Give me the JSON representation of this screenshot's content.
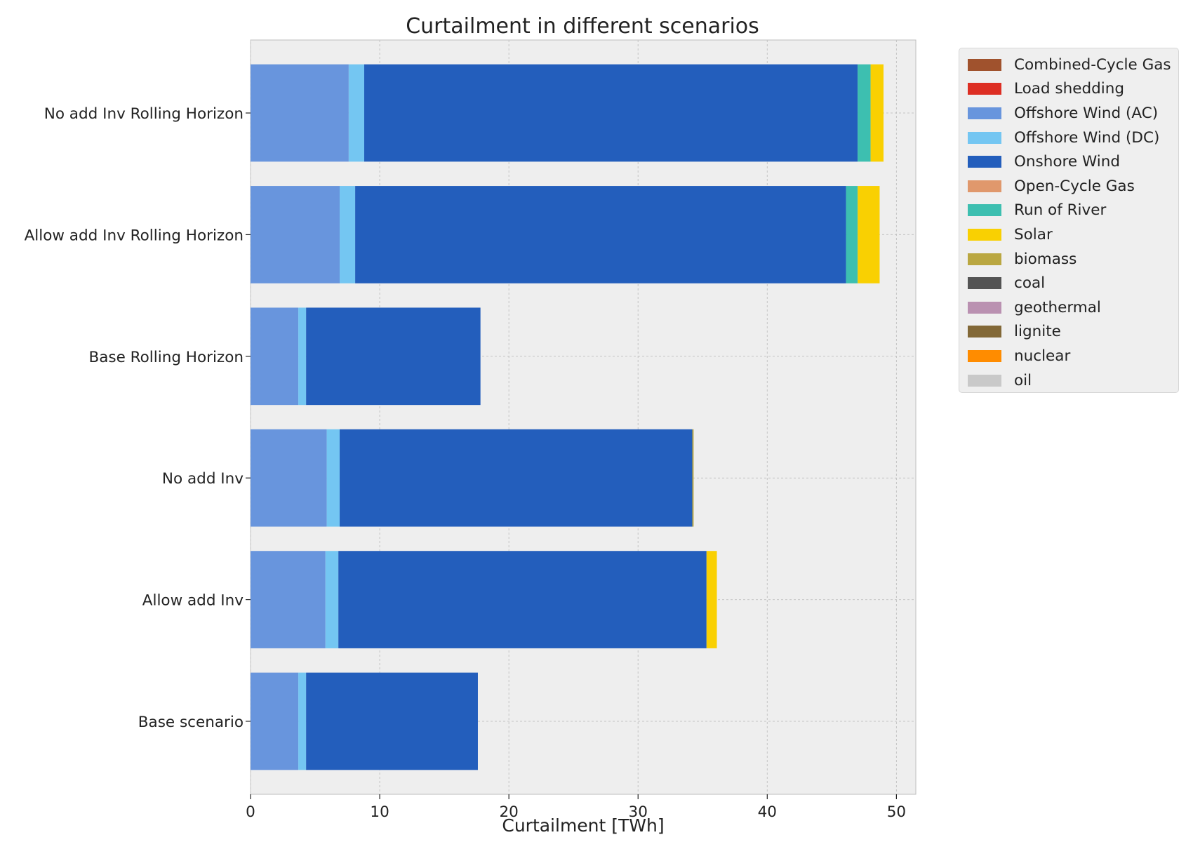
{
  "chart_data": {
    "type": "bar",
    "orientation": "horizontal",
    "stacked": true,
    "title": "Curtailment in different scenarios",
    "xlabel": "Curtailment [TWh]",
    "ylabel": "",
    "xlim": [
      0,
      51.5
    ],
    "xticks": [
      "0",
      "10",
      "20",
      "30",
      "40",
      "50"
    ],
    "grid": true,
    "legend_position": "outside-top-right",
    "categories": [
      "No add Inv Rolling Horizon",
      "Allow add Inv Rolling Horizon",
      "Base Rolling Horizon",
      "No add Inv",
      "Allow add Inv",
      "Base scenario"
    ],
    "series": [
      {
        "name": "Combined-Cycle Gas",
        "color": "#a0522d",
        "values": [
          0,
          0,
          0,
          0,
          0,
          0
        ]
      },
      {
        "name": "Load shedding",
        "color": "#dd2e23",
        "values": [
          0,
          0,
          0,
          0,
          0,
          0
        ]
      },
      {
        "name": "Offshore Wind (AC)",
        "color": "#6895dd",
        "values": [
          7.6,
          6.9,
          3.7,
          5.9,
          5.8,
          3.7
        ]
      },
      {
        "name": "Offshore Wind (DC)",
        "color": "#74c6f2",
        "values": [
          1.2,
          1.2,
          0.6,
          1.0,
          1.0,
          0.6
        ]
      },
      {
        "name": "Onshore Wind",
        "color": "#235ebc",
        "values": [
          38.2,
          38.0,
          13.5,
          27.3,
          28.5,
          13.3
        ]
      },
      {
        "name": "Open-Cycle Gas",
        "color": "#e0986c",
        "values": [
          0,
          0,
          0,
          0,
          0,
          0
        ]
      },
      {
        "name": "Run of River",
        "color": "#3dbfb0",
        "values": [
          1.0,
          0.9,
          0,
          0,
          0,
          0
        ]
      },
      {
        "name": "Solar",
        "color": "#f9d002",
        "values": [
          1.0,
          1.7,
          0,
          0,
          0.8,
          0
        ]
      },
      {
        "name": "biomass",
        "color": "#baa741",
        "values": [
          0,
          0,
          0,
          0.1,
          0,
          0
        ]
      },
      {
        "name": "coal",
        "color": "#545454",
        "values": [
          0,
          0,
          0,
          0,
          0,
          0
        ]
      },
      {
        "name": "geothermal",
        "color": "#ba91b1",
        "values": [
          0,
          0,
          0,
          0,
          0,
          0
        ]
      },
      {
        "name": "lignite",
        "color": "#826837",
        "values": [
          0,
          0,
          0,
          0,
          0,
          0
        ]
      },
      {
        "name": "nuclear",
        "color": "#ff8c00",
        "values": [
          0,
          0,
          0,
          0,
          0,
          0
        ]
      },
      {
        "name": "oil",
        "color": "#c9c9c9",
        "values": [
          0,
          0,
          0,
          0,
          0,
          0
        ]
      }
    ]
  }
}
